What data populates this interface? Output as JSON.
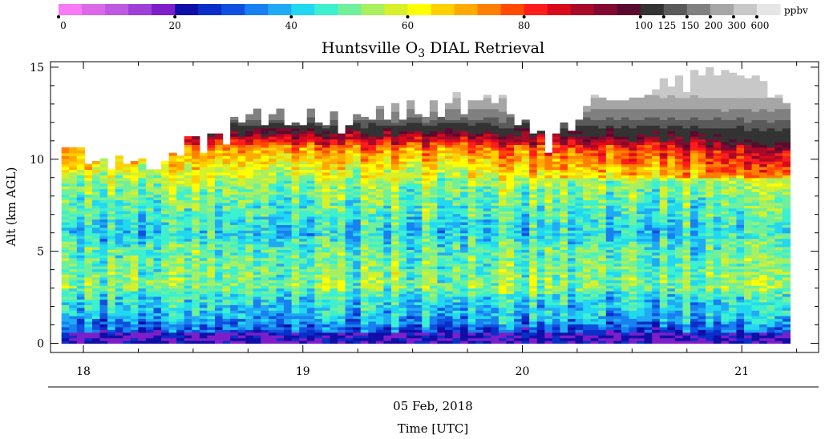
{
  "chart_data": {
    "type": "heatmap",
    "title_prefix": "Huntsville O",
    "title_subscript": "3",
    "title_suffix": " DIAL Retrieval",
    "ylabel": "Alt (km AGL)",
    "date_label": "05 Feb, 2018",
    "xlabel": "Time [UTC]",
    "x_range_hours": [
      17.85,
      21.35
    ],
    "x_ticks": [
      {
        "value": 18,
        "label": "18"
      },
      {
        "value": 19,
        "label": "19"
      },
      {
        "value": 20,
        "label": "20"
      },
      {
        "value": 21,
        "label": "21"
      }
    ],
    "y_range_km": [
      -0.5,
      15.3
    ],
    "y_ticks": [
      {
        "value": 0,
        "label": "0"
      },
      {
        "value": 5,
        "label": "5"
      },
      {
        "value": 10,
        "label": "10"
      },
      {
        "value": 15,
        "label": "15"
      }
    ],
    "data_x_range_hours": [
      17.9,
      21.22
    ],
    "colorbar": {
      "unit_label": "ppbv",
      "colors": [
        "#f77af7",
        "#dc6ae8",
        "#bd5ae0",
        "#9e40d8",
        "#7d1ec8",
        "#0f0fa8",
        "#0a2ec8",
        "#1050e0",
        "#1880f0",
        "#20aaf5",
        "#22d8f0",
        "#3cf0d0",
        "#70f09a",
        "#a8f060",
        "#d6f02a",
        "#ffff00",
        "#ffd000",
        "#ffaa00",
        "#ff7f00",
        "#ff4a00",
        "#ff1c1c",
        "#d80a1c",
        "#a80a28",
        "#800a30",
        "#5a0a2e",
        "#333333",
        "#5a5a5a",
        "#808080",
        "#a6a6a6",
        "#c8c8c8",
        "#e6e6e6"
      ],
      "ticks": [
        {
          "index": 0,
          "label": "0"
        },
        {
          "index": 5,
          "label": "20"
        },
        {
          "index": 10,
          "label": "40"
        },
        {
          "index": 15,
          "label": "60"
        },
        {
          "index": 20,
          "label": "80"
        },
        {
          "index": 25,
          "label": "100"
        },
        {
          "index": 26,
          "label": "125"
        },
        {
          "index": 27,
          "label": "150"
        },
        {
          "index": 28,
          "label": "200"
        },
        {
          "index": 29,
          "label": "300"
        },
        {
          "index": 30,
          "label": "600"
        }
      ]
    },
    "profile_structure": [
      {
        "alt_km": 0.0,
        "ppbv": 20
      },
      {
        "alt_km": 0.6,
        "ppbv": 30
      },
      {
        "alt_km": 1.5,
        "ppbv": 40
      },
      {
        "alt_km": 2.5,
        "ppbv": 44
      },
      {
        "alt_km": 3.0,
        "ppbv": 52
      },
      {
        "alt_km": 4.0,
        "ppbv": 50
      },
      {
        "alt_km": 5.0,
        "ppbv": 48
      },
      {
        "alt_km": 6.0,
        "ppbv": 42
      },
      {
        "alt_km": 7.0,
        "ppbv": 47
      },
      {
        "alt_km": 8.5,
        "ppbv": 52
      },
      {
        "alt_km": 9.5,
        "ppbv": 62
      },
      {
        "alt_km": 10.5,
        "ppbv": 72
      },
      {
        "alt_km": 11.5,
        "ppbv": 100
      },
      {
        "alt_km": 12.5,
        "ppbv": 180
      },
      {
        "alt_km": 14.0,
        "ppbv": 400
      }
    ],
    "top_altitude_profile_km": [
      {
        "hour": 17.9,
        "alt": 10.8
      },
      {
        "hour": 18.0,
        "alt": 9.6
      },
      {
        "hour": 18.3,
        "alt": 9.8
      },
      {
        "hour": 18.6,
        "alt": 11.2
      },
      {
        "hour": 18.8,
        "alt": 12.2
      },
      {
        "hour": 19.2,
        "alt": 12.0
      },
      {
        "hour": 19.5,
        "alt": 12.6
      },
      {
        "hour": 19.85,
        "alt": 13.4
      },
      {
        "hour": 20.0,
        "alt": 11.8
      },
      {
        "hour": 20.1,
        "alt": 10.5
      },
      {
        "hour": 20.3,
        "alt": 12.8
      },
      {
        "hour": 20.5,
        "alt": 13.6
      },
      {
        "hour": 20.8,
        "alt": 14.2
      },
      {
        "hour": 21.0,
        "alt": 14.8
      },
      {
        "hour": 21.22,
        "alt": 12.5
      }
    ],
    "grid": false
  }
}
